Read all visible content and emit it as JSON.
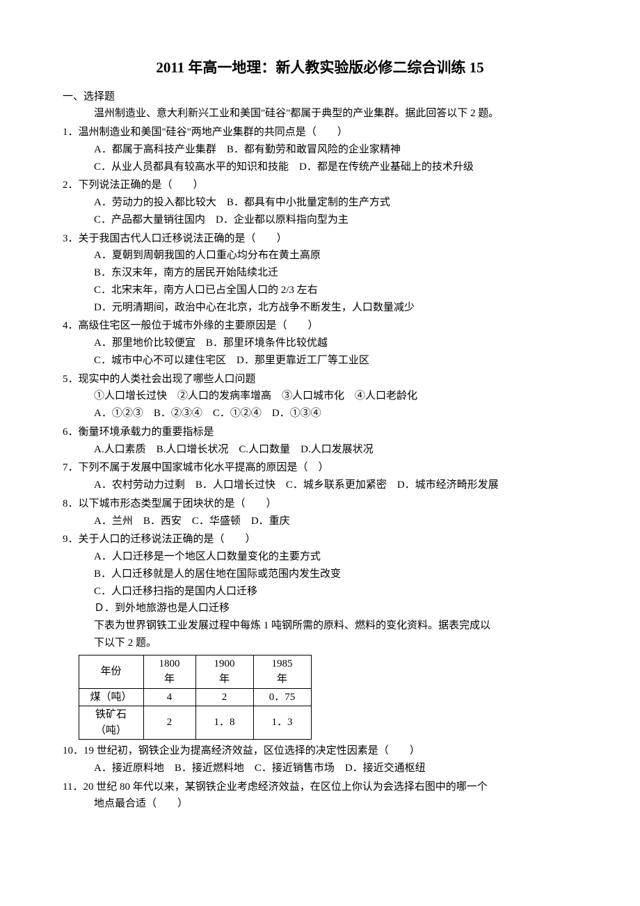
{
  "title": "2011 年高一地理：新人教实验版必修二综合训练 15",
  "section1": "一、选择题",
  "intro1": "温州制造业、意大利新兴工业和美国\"硅谷\"都属于典型的产业集群。据此回答以下 2 题。",
  "q1": {
    "stem": "1．温州制造业和美国\"硅谷\"两地产业集群的共同点是（　　）",
    "line1": "A．都属于高科技产业集群　B．都有勤劳和敢冒风险的企业家精神",
    "line2": "C．从业人员都具有较高水平的知识和技能　D．都是在传统产业基础上的技术升级"
  },
  "q2": {
    "stem": "2．下列说法正确的是（　　）",
    "line1": "A．劳动力的投入都比较大　B．都具有中小批量定制的生产方式",
    "line2": "C．产品都大量销往国内　D．企业都以原料指向型为主"
  },
  "q3": {
    "stem": "3．关于我国古代人口迁移说法正确的是（　　）",
    "a": "A．夏朝到周朝我国的人口重心均分布在黄土高原",
    "b": "B．东汉末年，南方的居民开始陆续北迁",
    "c": "C．北宋末年，南方人口已占全国人口的 2/3 左右",
    "d": "D．元明清期间，政治中心在北京，北方战争不断发生，人口数量减少"
  },
  "q4": {
    "stem": "4．高级住宅区一般位于城市外缘的主要原因是（　　）",
    "line1": "A．那里地价比较便宜　B．那里环境条件比较优越",
    "line2": "C．城市中心不可以建住宅区　D．那里更靠近工厂等工业区"
  },
  "q5": {
    "stem": "5．现实中的人类社会出现了哪些人口问题",
    "sub": "①人口增长过快　②人口的发病率增高　③人口城市化　④人口老龄化",
    "opts": "A．①②③　B．②③④　C．①②④　D．①③④"
  },
  "q6": {
    "stem": "6．衡量环境承载力的重要指标是",
    "opts": "A.人口素质　B.人口增长状况　C.人口数量　D.人口发展状况"
  },
  "q7": {
    "stem": "7．下列不属于发展中国家城市化水平提高的原因是（　）",
    "opts": "A．农村劳动力过剩　B．人口增长过快　C．城乡联系更加紧密　D．城市经济畸形发展"
  },
  "q8": {
    "stem": "8．以下城市形态类型属于团块状的是（　　）",
    "opts": "A．兰州　B．西安　C．华盛顿　D．重庆"
  },
  "q9": {
    "stem": "9．关于人口的迁移说法正确的是（　　）",
    "a": "A．人口迁移是一个地区人口数量变化的主要方式",
    "b": "B．人口迁移就是人的居住地在国际或范围内发生改变",
    "c": "C．人口迁移扫指的是国内人口迁移",
    "d": "Ｄ．到外地旅游也是人口迁移",
    "intro2a": "下表为世界钢铁工业发展过程中每炼 1 吨钢所需的原料、燃料的变化资料。据表完成以",
    "intro2b": "下以下 2 题。"
  },
  "table": {
    "h0a": "年份",
    "h1a": "1800",
    "h2a": "1900",
    "h3a": "1985",
    "h0b": "",
    "h1b": "年",
    "h2b": "年",
    "h3b": "年",
    "r1c0": "煤（吨）",
    "r1c1": "4",
    "r1c2": "2",
    "r1c3": "0．75",
    "r2c0a": "铁矿石",
    "r2c1": "2",
    "r2c2": "1．8",
    "r2c3": "1．3",
    "r2c0b": "（吨）"
  },
  "q10": {
    "stem": "10．19 世纪初，钢铁企业为提高经济效益，区位选择的决定性因素是（　　）",
    "opts": "A．接近原料地　B．接近燃料地　C．接近销售市场　D．接近交通枢纽"
  },
  "q11": {
    "stem1": "11．20 世纪 80 年代以来，某钢铁企业考虑经济效益，在区位上你认为会选择右图中的哪一个",
    "stem2": "地点最合适（　　）"
  }
}
